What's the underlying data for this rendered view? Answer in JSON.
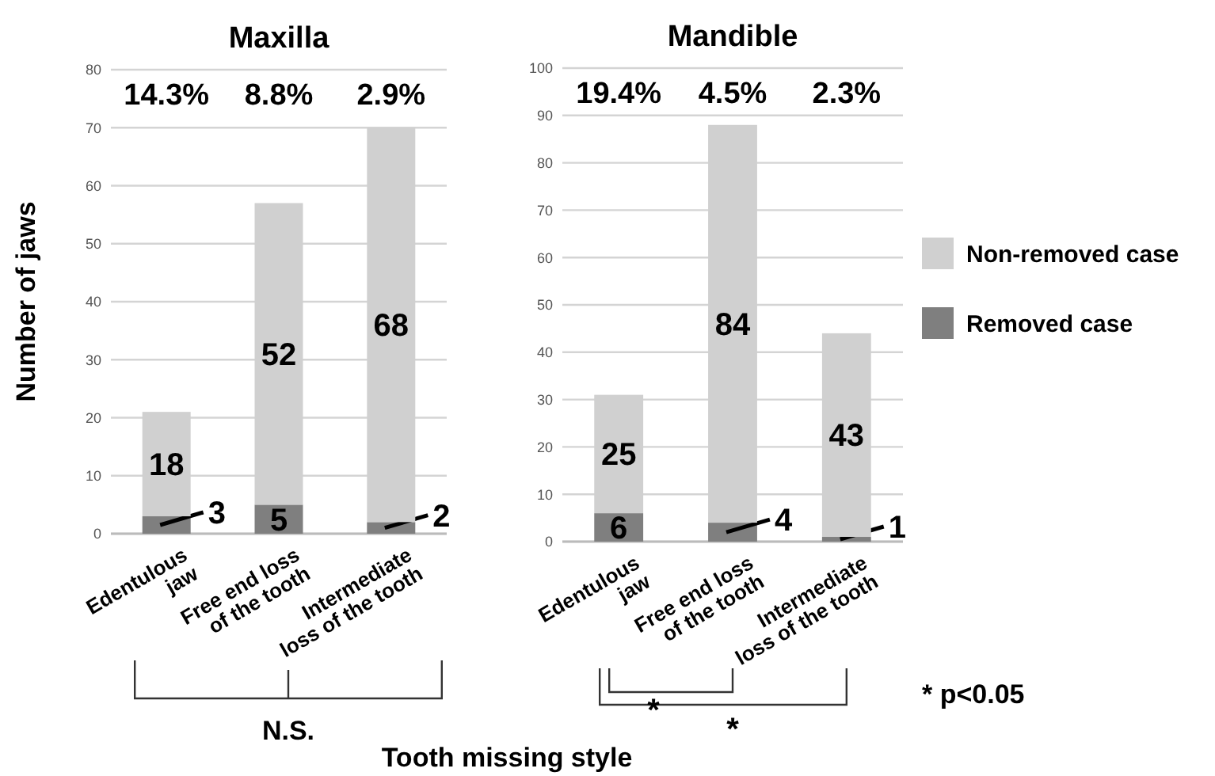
{
  "chart_data": [
    {
      "type": "bar",
      "title": "Maxilla",
      "ylabel": "Number of jaws",
      "xlabel": "Tooth missing style",
      "stacked": true,
      "data_labels": true,
      "grid": "y",
      "legend": false,
      "categories": [
        "Edentulous jaw",
        "Free end loss of the tooth",
        "Intermediate loss of the tooth"
      ],
      "series": [
        {
          "color": "#7f7f7f",
          "values": [
            3,
            5,
            2
          ]
        },
        {
          "color": "#d0d0d0",
          "values": [
            18,
            52,
            68
          ]
        }
      ],
      "ylim": [
        0,
        80
      ],
      "yticks": [
        0,
        10,
        20,
        30,
        40,
        50,
        60,
        70,
        80
      ],
      "annotations": [
        "14.3%",
        "8.8%",
        "2.9%",
        "N.S."
      ]
    },
    {
      "type": "bar",
      "title": "Mandible",
      "stacked": true,
      "data_labels": true,
      "grid": "y",
      "legend": "right",
      "categories": [
        "Edentulous jaw",
        "Free end loss of the tooth",
        "Intermediate loss of the tooth"
      ],
      "series": [
        {
          "name": "Removed case",
          "color": "#7f7f7f",
          "values": [
            6,
            4,
            1
          ]
        },
        {
          "name": "Non-removed case",
          "color": "#d0d0d0",
          "values": [
            25,
            84,
            43
          ]
        }
      ],
      "ylim": [
        0,
        100
      ],
      "yticks": [
        0,
        10,
        20,
        30,
        40,
        50,
        60,
        70,
        80,
        90,
        100
      ],
      "annotations": [
        "19.4%",
        "4.5%",
        "2.3%",
        "*",
        "*",
        "* p<0.05"
      ]
    }
  ]
}
